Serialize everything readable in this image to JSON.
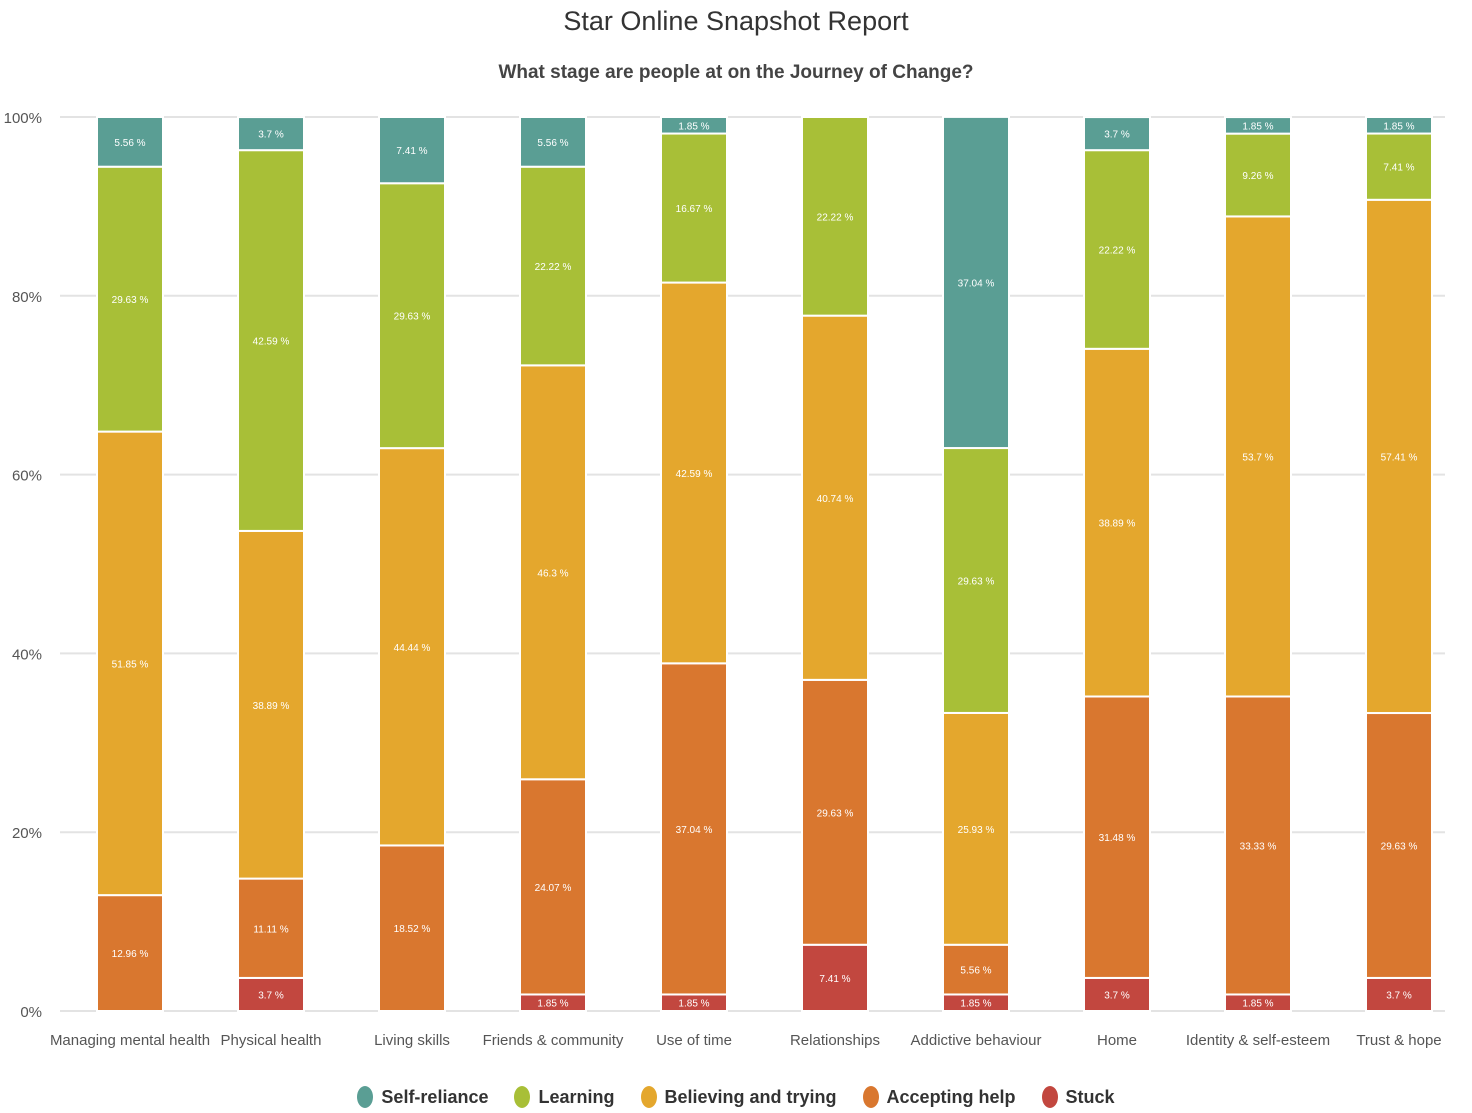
{
  "chart_data": {
    "type": "bar",
    "stacked": true,
    "title": "Star Online Snapshot Report",
    "subtitle": "What stage are people at on the Journey of Change?",
    "ylim": [
      0,
      100
    ],
    "y_ticks": [
      "0%",
      "20%",
      "40%",
      "60%",
      "80%",
      "100%"
    ],
    "grid": true,
    "legend_position": "bottom",
    "categories": [
      "Managing mental health",
      "Physical health",
      "Living skills",
      "Friends & community",
      "Use of time",
      "Relationships",
      "Addictive behaviour",
      "Home",
      "Identity & self-esteem",
      "Trust & hope"
    ],
    "series": [
      {
        "name": "Stuck",
        "color": "#c2473f",
        "values": [
          0,
          3.7,
          0,
          1.85,
          1.85,
          7.41,
          1.85,
          3.7,
          1.85,
          3.7
        ],
        "labels": [
          "",
          "3.7 %",
          "",
          "1.85 %",
          "1.85 %",
          "7.41 %",
          "1.85 %",
          "3.7 %",
          "1.85 %",
          "3.7 %"
        ]
      },
      {
        "name": "Accepting help",
        "color": "#d9772f",
        "values": [
          12.96,
          11.11,
          18.52,
          24.07,
          37.04,
          29.63,
          5.56,
          31.48,
          33.33,
          29.63
        ],
        "labels": [
          "12.96 %",
          "11.11 %",
          "18.52 %",
          "24.07 %",
          "37.04 %",
          "29.63 %",
          "5.56 %",
          "31.48 %",
          "33.33 %",
          "29.63 %"
        ]
      },
      {
        "name": "Believing and trying",
        "color": "#e4a72d",
        "values": [
          51.85,
          38.89,
          44.44,
          46.3,
          42.59,
          40.74,
          25.93,
          38.89,
          53.7,
          57.41
        ],
        "labels": [
          "51.85 %",
          "38.89 %",
          "44.44 %",
          "46.3 %",
          "42.59 %",
          "40.74 %",
          "25.93 %",
          "38.89 %",
          "53.7 %",
          "57.41 %"
        ]
      },
      {
        "name": "Learning",
        "color": "#a8bf37",
        "values": [
          29.63,
          42.59,
          29.63,
          22.22,
          16.67,
          22.22,
          29.63,
          22.22,
          9.26,
          7.41
        ],
        "labels": [
          "29.63 %",
          "42.59 %",
          "29.63 %",
          "22.22 %",
          "16.67 %",
          "22.22 %",
          "29.63 %",
          "22.22 %",
          "9.26 %",
          "7.41 %"
        ]
      },
      {
        "name": "Self-reliance",
        "color": "#5a9e94",
        "values": [
          5.56,
          3.7,
          7.41,
          5.56,
          1.85,
          0,
          37.04,
          3.7,
          1.85,
          1.85
        ],
        "labels": [
          "5.56 %",
          "3.7 %",
          "7.41 %",
          "5.56 %",
          "1.85 %",
          "",
          "37.04 %",
          "3.7 %",
          "1.85 %",
          "1.85 %"
        ]
      }
    ],
    "legend_order": [
      "Self-reliance",
      "Learning",
      "Believing and trying",
      "Accepting help",
      "Stuck"
    ]
  }
}
